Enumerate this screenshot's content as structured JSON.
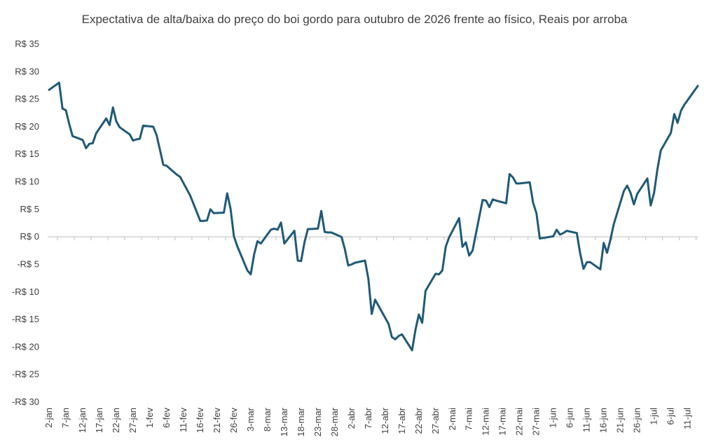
{
  "chart_data": {
    "type": "line",
    "title": "Expectativa de alta/baixa do preço do boi gordo para outubro de 2026 frente ao físico, Reais por arroba",
    "xlabel": "",
    "ylabel": "",
    "ylim": [
      -30,
      35
    ],
    "y_ticks": [
      35,
      30,
      25,
      20,
      15,
      10,
      5,
      0,
      -5,
      -10,
      -15,
      -20,
      -25,
      -30
    ],
    "y_tick_labels": [
      "R$ 35",
      "R$ 30",
      "R$ 25",
      "R$ 20",
      "R$ 15",
      "R$ 10",
      "R$ 5",
      "R$ 0",
      "-R$ 5",
      "-R$ 10",
      "-R$ 15",
      "-R$ 20",
      "-R$ 25",
      "-R$ 30"
    ],
    "x_tick_labels": [
      "2-jan",
      "7-jan",
      "12-jan",
      "17-jan",
      "22-jan",
      "27-jan",
      "1-fev",
      "6-fev",
      "11-fev",
      "16-fev",
      "21-fev",
      "26-fev",
      "3-mar",
      "8-mar",
      "13-mar",
      "18-mar",
      "23-mar",
      "28-mar",
      "2-abr",
      "7-abr",
      "12-abr",
      "17-abr",
      "22-abr",
      "27-abr",
      "2-mai",
      "7-mai",
      "12-mai",
      "17-mai",
      "22-mai",
      "27-mai",
      "1-jun",
      "6-jun",
      "11-jun",
      "16-jun",
      "21-jun",
      "26-jun",
      "1-jul",
      "6-jul",
      "11-jul"
    ],
    "x_tick_days": [
      0,
      5,
      10,
      15,
      20,
      25,
      30,
      35,
      40,
      45,
      50,
      55,
      60,
      65,
      70,
      75,
      80,
      85,
      90,
      95,
      100,
      105,
      110,
      115,
      120,
      125,
      130,
      135,
      140,
      145,
      150,
      155,
      160,
      165,
      170,
      175,
      180,
      185,
      190
    ],
    "x_range": [
      0,
      193
    ],
    "grid": false,
    "legend": "none",
    "series": [
      {
        "color": "#1f5a78",
        "x": [
          0,
          3,
          4,
          5,
          6,
          7,
          10,
          11,
          12,
          13,
          14,
          17,
          18,
          19,
          20,
          21,
          24,
          25,
          26,
          27,
          28,
          31,
          32,
          33,
          34,
          35,
          38,
          39,
          42,
          45,
          46,
          47,
          48,
          49,
          52,
          53,
          54,
          55,
          56,
          59,
          60,
          61,
          62,
          63,
          66,
          67,
          68,
          69,
          70,
          73,
          74,
          75,
          76,
          77,
          80,
          81,
          82,
          83,
          84,
          87,
          88,
          89,
          90,
          91,
          94,
          95,
          96,
          97,
          98,
          101,
          102,
          103,
          104,
          105,
          108,
          109,
          110,
          111,
          112,
          115,
          116,
          117,
          118,
          119,
          122,
          123,
          124,
          125,
          126,
          129,
          130,
          131,
          132,
          133,
          136,
          137,
          138,
          139,
          140,
          143,
          144,
          145,
          146,
          147,
          150,
          151,
          152,
          153,
          154,
          157,
          158,
          159,
          160,
          161,
          164,
          165,
          166,
          167,
          168,
          171,
          172,
          173,
          174,
          175,
          178,
          179,
          180,
          181,
          182,
          185,
          186,
          187,
          188,
          189,
          193
        ],
        "values": [
          26.7,
          28.0,
          23.3,
          23.0,
          20.5,
          18.3,
          17.6,
          16.1,
          16.9,
          17.0,
          18.8,
          21.5,
          20.3,
          23.5,
          21.0,
          19.9,
          18.6,
          17.5,
          17.7,
          17.8,
          20.2,
          20.0,
          18.5,
          15.8,
          13.1,
          12.9,
          11.3,
          10.9,
          7.5,
          2.9,
          2.9,
          3.0,
          5.0,
          4.3,
          4.4,
          7.9,
          5.1,
          0.1,
          -1.7,
          -6.1,
          -6.8,
          -3.2,
          -0.8,
          -1.2,
          1.3,
          1.5,
          1.3,
          2.6,
          -1.2,
          1.1,
          -4.3,
          -4.4,
          -1.0,
          1.4,
          1.5,
          4.7,
          0.9,
          0.8,
          0.8,
          0.0,
          -2.2,
          -5.2,
          -5.0,
          -4.7,
          -4.3,
          -7.6,
          -14.0,
          -11.4,
          -12.5,
          -15.8,
          -18.2,
          -18.6,
          -18.0,
          -17.7,
          -20.6,
          -16.9,
          -14.1,
          -15.6,
          -9.8,
          -6.7,
          -6.8,
          -6.1,
          -1.8,
          -0.1,
          3.4,
          -1.8,
          -1.0,
          -3.4,
          -2.5,
          6.7,
          6.6,
          5.4,
          6.8,
          6.6,
          6.1,
          11.4,
          10.8,
          9.7,
          9.7,
          9.9,
          6.2,
          4.3,
          -0.3,
          -0.2,
          0.1,
          1.3,
          0.4,
          0.7,
          1.1,
          0.7,
          -3.0,
          -5.8,
          -4.6,
          -4.6,
          -5.9,
          -1.1,
          -2.9,
          -0.5,
          2.3,
          8.3,
          9.3,
          8.0,
          5.9,
          7.8,
          10.6,
          5.7,
          8.0,
          12.3,
          15.7,
          18.9,
          22.3,
          20.7,
          22.9,
          24.0,
          27.4
        ]
      }
    ]
  }
}
